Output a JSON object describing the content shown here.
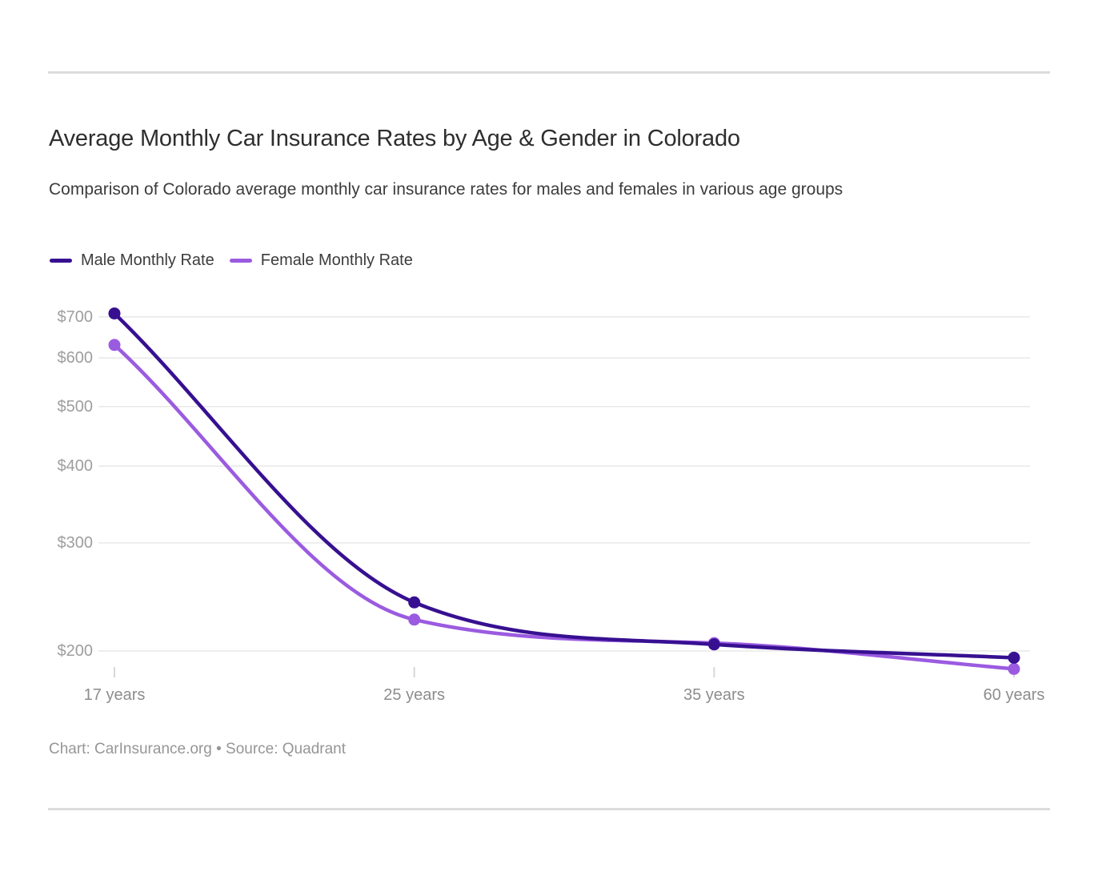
{
  "header": {
    "title": "Average Monthly Car Insurance Rates by Age & Gender in Colorado",
    "subtitle": "Comparison of Colorado average monthly car insurance rates for males and females in various age groups"
  },
  "legend": [
    {
      "label": "Male Monthly Rate",
      "color": "#371091"
    },
    {
      "label": "Female Monthly Rate",
      "color": "#9b5be0"
    }
  ],
  "chart_data": {
    "type": "line",
    "title": "Average Monthly Car Insurance Rates by Age & Gender in Colorado",
    "subtitle": "Comparison of Colorado average monthly car insurance rates for males and females in various age groups",
    "categories": [
      "17 years",
      "25 years",
      "35 years",
      "60 years"
    ],
    "series": [
      {
        "name": "Male Monthly Rate",
        "color": "#371091",
        "values": [
          709,
          240,
          205,
          195
        ]
      },
      {
        "name": "Female Monthly Rate",
        "color": "#9b5be0",
        "values": [
          630,
          225,
          206,
          187
        ]
      }
    ],
    "xlabel": "",
    "ylabel": "",
    "y_axis": {
      "scale": "log",
      "ticks": [
        200,
        300,
        400,
        500,
        600,
        700
      ],
      "tick_prefix": "$",
      "range": [
        185,
        715
      ]
    },
    "grid": true,
    "legend_position": "top-left",
    "line_smoothing": "monotone",
    "colors": {
      "gridline": "#e8e8e8",
      "axis_tick": "#d8d8d8",
      "y_label_text": "#9e9e9e",
      "x_label_text": "#8d8d8d"
    }
  },
  "footer": {
    "text": "Chart: CarInsurance.org • Source: Quadrant"
  }
}
